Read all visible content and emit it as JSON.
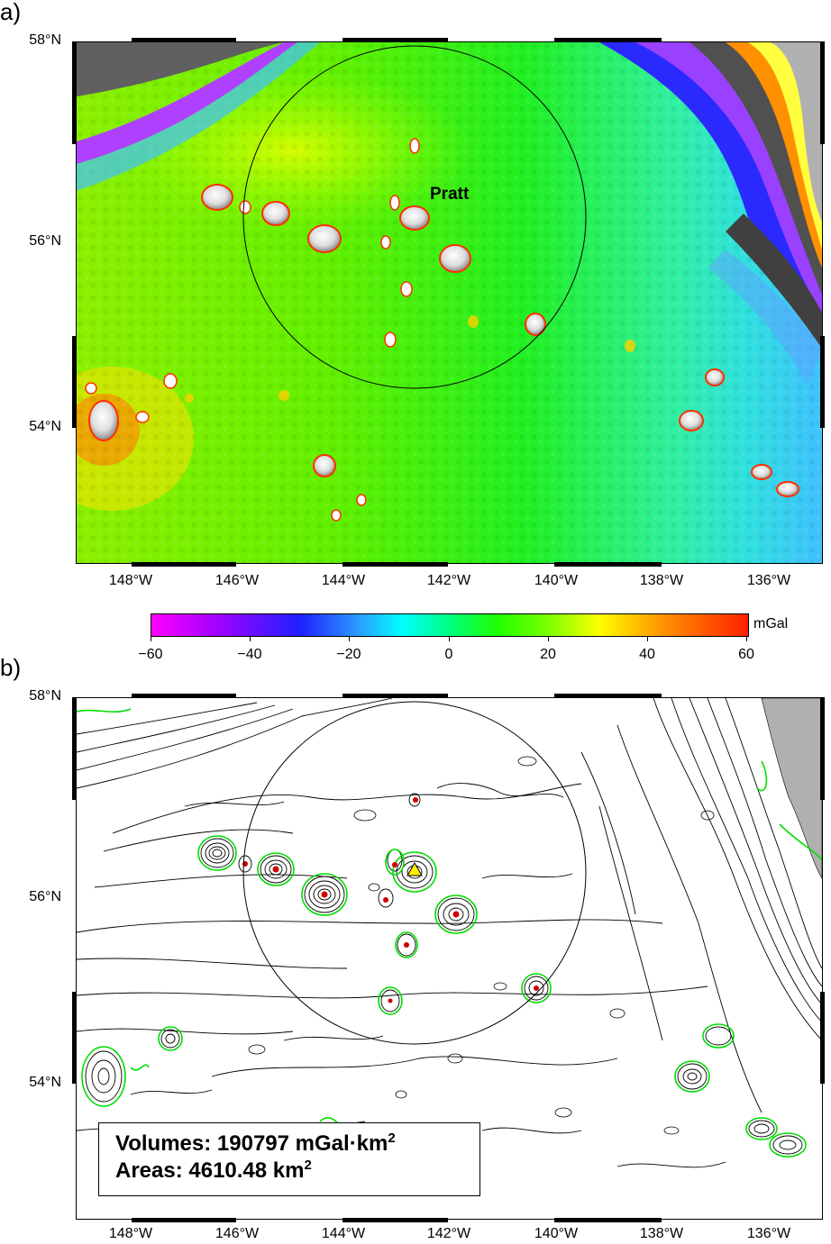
{
  "panels": {
    "a": {
      "letter": "a)",
      "label_pratt": "Pratt",
      "x_ticks": [
        "148°W",
        "146°W",
        "144°W",
        "142°W",
        "140°W",
        "138°W",
        "136°W"
      ],
      "y_ticks": [
        "58°N",
        "56°N",
        "54°N"
      ]
    },
    "b": {
      "letter": "b)",
      "x_ticks": [
        "148°W",
        "146°W",
        "144°W",
        "142°W",
        "140°W",
        "138°W",
        "136°W"
      ],
      "y_ticks": [
        "58°N",
        "56°N",
        "54°N"
      ],
      "stats": {
        "volumes_prefix": "Volumes: 190797 mGal·km",
        "areas_prefix": "Areas: 4610.48 km",
        "exponent": "2"
      }
    }
  },
  "colorbar": {
    "unit": "mGal",
    "ticks": [
      "−60",
      "−40",
      "−20",
      "0",
      "20",
      "40",
      "60"
    ],
    "range": [
      -60,
      60
    ]
  },
  "colors": {
    "land": "#b0b0b0",
    "contour": "#000000",
    "highlight_contour": "#00dd00",
    "seamount_dot": "#cc0000",
    "marker": "#ffee00"
  }
}
